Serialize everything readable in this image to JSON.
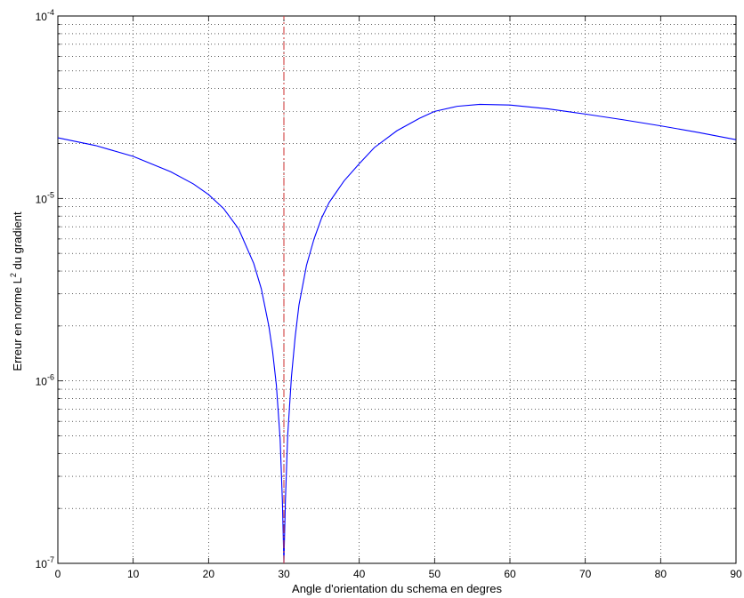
{
  "chart_data": {
    "type": "line",
    "xlabel": "Angle d'orientation du schema en degres",
    "ylabel": {
      "before": "Erreur en norme L",
      "superscript": "2",
      "after": " du gradient"
    },
    "xlim": [
      0,
      90
    ],
    "ylim": [
      1e-07,
      0.0001
    ],
    "yscale": "log",
    "grid": true,
    "x_ticks": [
      0,
      10,
      20,
      30,
      40,
      50,
      60,
      70,
      80,
      90
    ],
    "y_ticks": [
      {
        "value": 1e-07,
        "base": "10",
        "exp": "-7"
      },
      {
        "value": 1e-06,
        "base": "10",
        "exp": "-6"
      },
      {
        "value": 1e-05,
        "base": "10",
        "exp": "-5"
      },
      {
        "value": 0.0001,
        "base": "10",
        "exp": "-4"
      }
    ],
    "series": [
      {
        "color": "#0000ff",
        "style": "solid",
        "x": [
          0,
          5,
          10,
          15,
          18,
          20,
          22,
          24,
          26,
          27,
          28,
          28.5,
          29,
          29.5,
          29.8,
          30,
          30.2,
          30.5,
          31,
          31.5,
          32,
          33,
          34,
          35,
          36,
          38,
          40,
          42,
          45,
          48,
          50,
          53,
          56,
          60,
          65,
          70,
          75,
          80,
          85,
          90
        ],
        "y": [
          2.15e-05,
          1.95e-05,
          1.7e-05,
          1.4e-05,
          1.2e-05,
          1.05e-05,
          8.8e-06,
          6.8e-06,
          4.4e-06,
          3.2e-06,
          2e-06,
          1.45e-06,
          9.5e-07,
          4.8e-07,
          2.2e-07,
          1e-07,
          2.2e-07,
          5e-07,
          1.05e-06,
          1.75e-06,
          2.6e-06,
          4.3e-06,
          6e-06,
          7.8e-06,
          9.5e-06,
          1.25e-05,
          1.55e-05,
          1.9e-05,
          2.35e-05,
          2.75e-05,
          3e-05,
          3.2e-05,
          3.28e-05,
          3.25e-05,
          3.1e-05,
          2.9e-05,
          2.7e-05,
          2.5e-05,
          2.3e-05,
          2.1e-05
        ]
      },
      {
        "color": "#d04040",
        "style": "dash-dot",
        "x": [
          30,
          30
        ],
        "y": [
          1e-07,
          0.0001
        ]
      }
    ]
  }
}
